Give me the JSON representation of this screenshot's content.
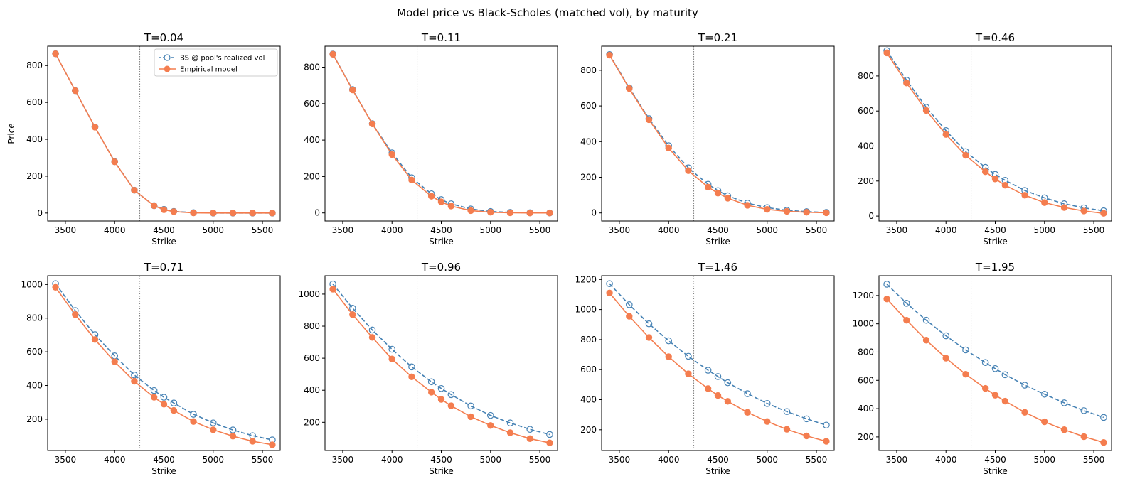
{
  "figure": {
    "suptitle": "Model price vs Black-Scholes (matched vol), by maturity",
    "colors": {
      "bs": "#4682b4",
      "model": "#f47d4f",
      "axis": "#000000",
      "vline": "#808080"
    }
  },
  "chart_data": [
    {
      "type": "line",
      "title": "T=0.04",
      "xlabel": "Strike",
      "ylabel": "Price",
      "xlim": [
        3320,
        5680
      ],
      "ylim": [
        -43,
        905
      ],
      "xticks": [
        3500,
        4000,
        4500,
        5000,
        5500
      ],
      "yticks": [
        0,
        200,
        400,
        600,
        800
      ],
      "vline_x": 4255,
      "legend": {
        "placement": "top-right",
        "entries": [
          "BS @ pool's realized vol",
          "Empirical model"
        ]
      },
      "x": [
        3400,
        3600,
        3800,
        4000,
        4200,
        4400,
        4500,
        4600,
        4800,
        5000,
        5200,
        5400,
        5600
      ],
      "series": [
        {
          "name": "BS @ pool's realized vol",
          "style": "dashed-open-circle",
          "values": [
            864,
            664,
            467,
            279,
            124,
            40,
            20,
            9,
            2,
            0,
            0,
            0,
            0
          ]
        },
        {
          "name": "Empirical model",
          "style": "solid-filled-circle",
          "values": [
            864,
            664,
            466,
            278,
            124,
            40,
            18,
            8,
            1,
            0,
            0,
            0,
            0
          ]
        }
      ]
    },
    {
      "type": "line",
      "title": "T=0.11",
      "xlabel": "Strike",
      "ylabel": "",
      "xlim": [
        3320,
        5680
      ],
      "ylim": [
        -44,
        915
      ],
      "xticks": [
        3500,
        4000,
        4500,
        5000,
        5500
      ],
      "yticks": [
        0,
        200,
        400,
        600,
        800
      ],
      "vline_x": 4255,
      "x": [
        3400,
        3600,
        3800,
        4000,
        4200,
        4400,
        4500,
        4600,
        4800,
        5000,
        5200,
        5400,
        5600
      ],
      "series": [
        {
          "name": "BS @ pool's realized vol",
          "style": "dashed-open-circle",
          "values": [
            872,
            677,
            490,
            330,
            193,
            105,
            73,
            50,
            22,
            8,
            3,
            1,
            0
          ]
        },
        {
          "name": "Empirical model",
          "style": "solid-filled-circle",
          "values": [
            871,
            675,
            489,
            321,
            181,
            92,
            61,
            38,
            13,
            4,
            1,
            0,
            0
          ]
        }
      ]
    },
    {
      "type": "line",
      "title": "T=0.21",
      "xlabel": "Strike",
      "ylabel": "",
      "xlim": [
        3320,
        5680
      ],
      "ylim": [
        -45,
        935
      ],
      "xticks": [
        3500,
        4000,
        4500,
        5000,
        5500
      ],
      "yticks": [
        0,
        200,
        400,
        600,
        800
      ],
      "vline_x": 4255,
      "x": [
        3400,
        3600,
        3800,
        4000,
        4200,
        4400,
        4500,
        4600,
        4800,
        5000,
        5200,
        5400,
        5600
      ],
      "series": [
        {
          "name": "BS @ pool's realized vol",
          "style": "dashed-open-circle",
          "values": [
            888,
            702,
            529,
            377,
            253,
            161,
            125,
            96,
            55,
            30,
            15,
            7,
            3
          ]
        },
        {
          "name": "Empirical model",
          "style": "solid-filled-circle",
          "values": [
            885,
            698,
            523,
            364,
            237,
            145,
            111,
            83,
            43,
            20,
            9,
            4,
            1
          ]
        }
      ]
    },
    {
      "type": "line",
      "title": "T=0.46",
      "xlabel": "Strike",
      "ylabel": "",
      "xlim": [
        3320,
        5680
      ],
      "ylim": [
        -28,
        970
      ],
      "xticks": [
        3500,
        4000,
        4500,
        5000,
        5500
      ],
      "yticks": [
        0,
        200,
        400,
        600,
        800
      ],
      "vline_x": 4255,
      "x": [
        3400,
        3600,
        3800,
        4000,
        4200,
        4400,
        4500,
        4600,
        4800,
        5000,
        5200,
        5400,
        5600
      ],
      "series": [
        {
          "name": "BS @ pool's realized vol",
          "style": "dashed-open-circle",
          "values": [
            944,
            776,
            621,
            488,
            368,
            278,
            238,
            204,
            146,
            104,
            70,
            47,
            30
          ]
        },
        {
          "name": "Empirical model",
          "style": "solid-filled-circle",
          "values": [
            932,
            760,
            603,
            466,
            347,
            253,
            212,
            176,
            119,
            77,
            49,
            29,
            16
          ]
        }
      ]
    },
    {
      "type": "line",
      "title": "T=0.71",
      "xlabel": "Strike",
      "ylabel": "",
      "xlim": [
        3320,
        5680
      ],
      "ylim": [
        14,
        1052
      ],
      "xticks": [
        3500,
        4000,
        4500,
        5000,
        5500
      ],
      "yticks": [
        200,
        400,
        600,
        800,
        1000
      ],
      "vline_x": 4255,
      "x": [
        3400,
        3600,
        3800,
        4000,
        4200,
        4400,
        4500,
        4600,
        4800,
        5000,
        5200,
        5400,
        5600
      ],
      "series": [
        {
          "name": "BS @ pool's realized vol",
          "style": "dashed-open-circle",
          "values": [
            1005,
            845,
            702,
            576,
            462,
            370,
            330,
            296,
            229,
            178,
            136,
            102,
            77
          ]
        },
        {
          "name": "Empirical model",
          "style": "solid-filled-circle",
          "values": [
            983,
            821,
            673,
            541,
            425,
            330,
            289,
            252,
            186,
            137,
            99,
            69,
            48
          ]
        }
      ]
    },
    {
      "type": "line",
      "title": "T=0.96",
      "xlabel": "Strike",
      "ylabel": "",
      "xlim": [
        3320,
        5680
      ],
      "ylim": [
        24,
        1115
      ],
      "xticks": [
        3500,
        4000,
        4500,
        5000,
        5500
      ],
      "yticks": [
        200,
        400,
        600,
        800,
        1000
      ],
      "vline_x": 4255,
      "x": [
        3400,
        3600,
        3800,
        4000,
        4200,
        4400,
        4500,
        4600,
        4800,
        5000,
        5200,
        5400,
        5600
      ],
      "series": [
        {
          "name": "BS @ pool's realized vol",
          "style": "dashed-open-circle",
          "values": [
            1063,
            912,
            776,
            656,
            546,
            453,
            411,
            373,
            302,
            243,
            196,
            156,
            124
          ]
        },
        {
          "name": "Empirical model",
          "style": "solid-filled-circle",
          "values": [
            1031,
            872,
            730,
            595,
            484,
            388,
            343,
            303,
            235,
            180,
            135,
            98,
            72
          ]
        }
      ]
    },
    {
      "type": "line",
      "title": "T=1.46",
      "xlabel": "Strike",
      "ylabel": "",
      "xlim": [
        3320,
        5680
      ],
      "ylim": [
        62,
        1225
      ],
      "xticks": [
        3500,
        4000,
        4500,
        5000,
        5500
      ],
      "yticks": [
        200,
        400,
        600,
        800,
        1000,
        1200
      ],
      "vline_x": 4255,
      "x": [
        3400,
        3600,
        3800,
        4000,
        4200,
        4400,
        4500,
        4600,
        4800,
        5000,
        5200,
        5400,
        5600
      ],
      "series": [
        {
          "name": "BS @ pool's realized vol",
          "style": "dashed-open-circle",
          "values": [
            1172,
            1032,
            905,
            792,
            689,
            596,
            554,
            513,
            440,
            375,
            321,
            273,
            231
          ]
        },
        {
          "name": "Empirical model",
          "style": "solid-filled-circle",
          "values": [
            1110,
            955,
            814,
            686,
            572,
            474,
            428,
            389,
            316,
            255,
            203,
            159,
            123
          ]
        }
      ]
    },
    {
      "type": "line",
      "title": "T=1.95",
      "xlabel": "Strike",
      "ylabel": "",
      "xlim": [
        3320,
        5680
      ],
      "ylim": [
        104,
        1340
      ],
      "xticks": [
        3500,
        4000,
        4500,
        5000,
        5500
      ],
      "yticks": [
        200,
        400,
        600,
        800,
        1000,
        1200
      ],
      "vline_x": 4255,
      "x": [
        3400,
        3600,
        3800,
        4000,
        4200,
        4400,
        4500,
        4600,
        4800,
        5000,
        5200,
        5400,
        5600
      ],
      "series": [
        {
          "name": "BS @ pool's realized vol",
          "style": "dashed-open-circle",
          "values": [
            1280,
            1145,
            1025,
            915,
            815,
            726,
            683,
            640,
            566,
            502,
            441,
            386,
            338
          ]
        },
        {
          "name": "Empirical model",
          "style": "solid-filled-circle",
          "values": [
            1176,
            1025,
            884,
            757,
            643,
            543,
            495,
            453,
            374,
            307,
            251,
            202,
            161
          ]
        }
      ]
    }
  ]
}
